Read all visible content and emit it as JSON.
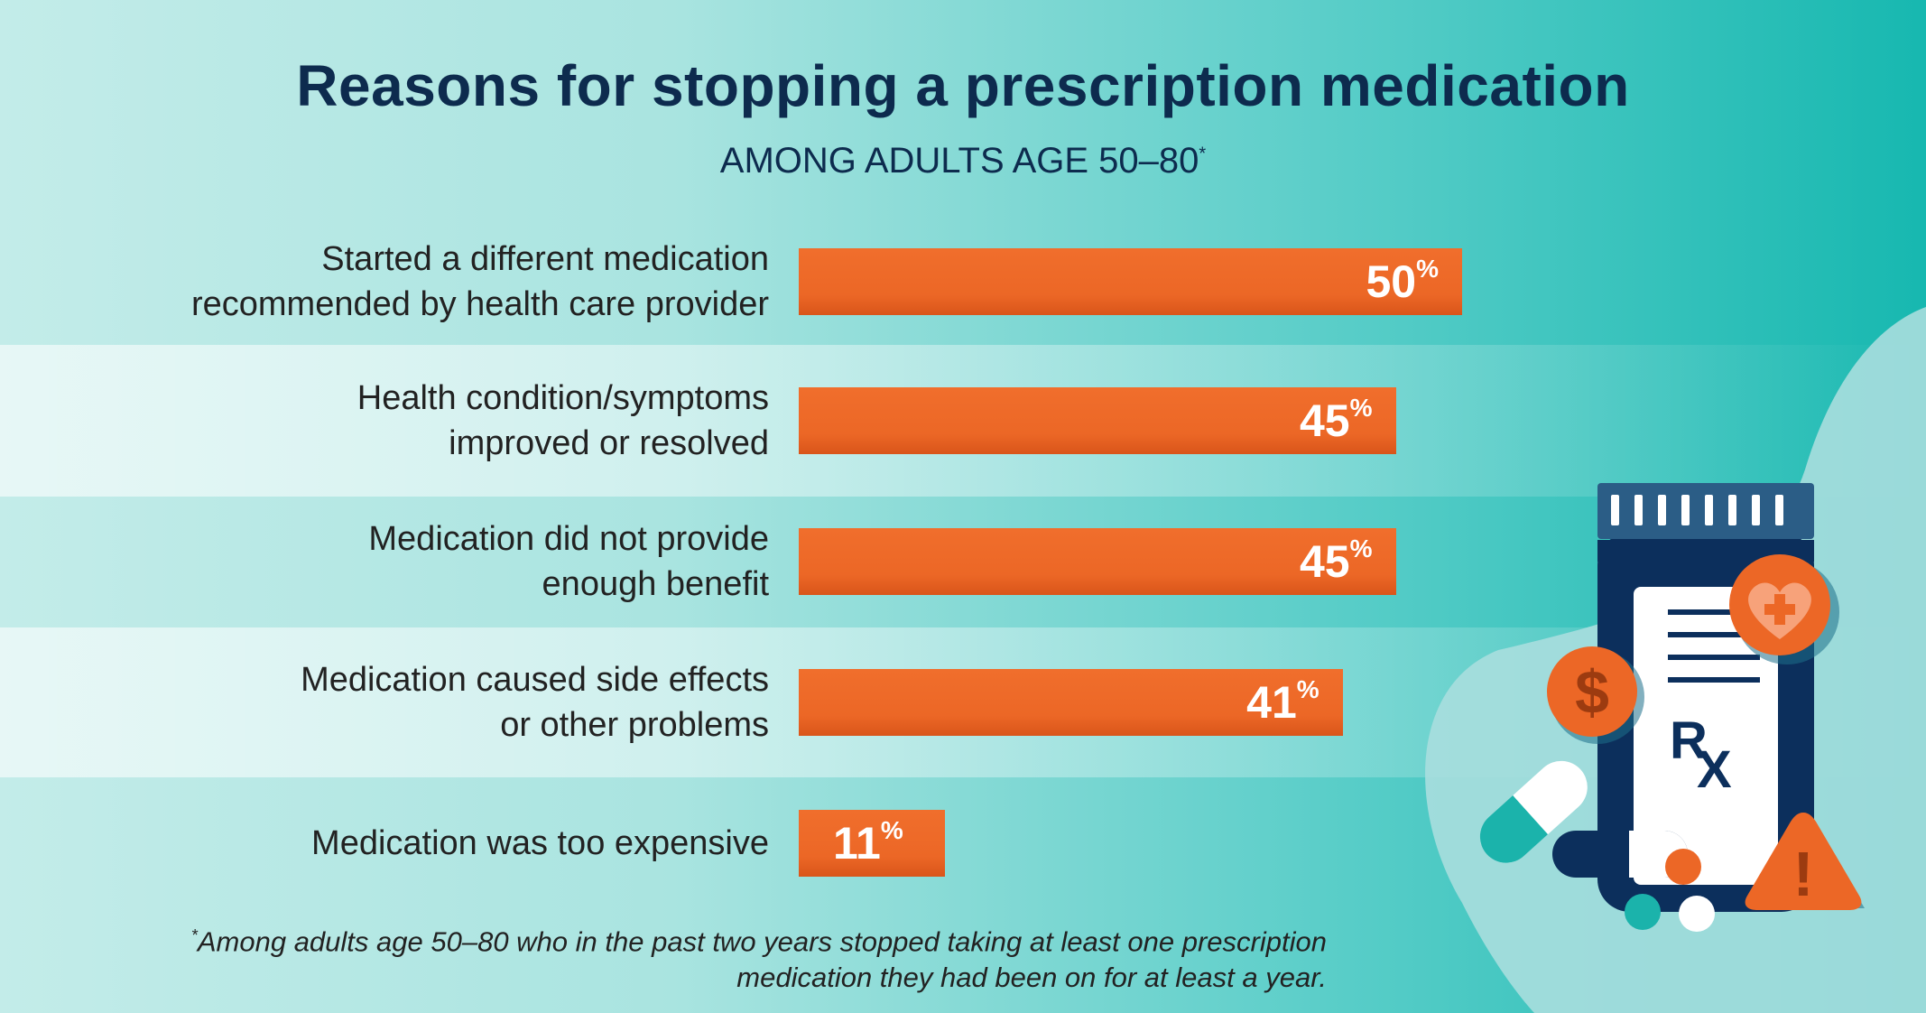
{
  "chart_data": {
    "type": "bar",
    "orientation": "horizontal",
    "title": "Reasons for stopping a prescription medication",
    "subtitle": "AMONG ADULTS AGE 50–80",
    "subtitle_marker": "*",
    "categories": [
      [
        "Started a different medication",
        "recommended by health care provider"
      ],
      [
        "Health condition/symptoms",
        "improved or resolved"
      ],
      [
        "Medication did not provide",
        "enough benefit"
      ],
      [
        "Medication caused side effects",
        "or other problems"
      ],
      [
        "Medication was too expensive"
      ]
    ],
    "values": [
      50,
      45,
      45,
      41,
      11
    ],
    "value_unit": "%",
    "xlabel": "",
    "ylabel": "",
    "grid": false,
    "legend": "none"
  },
  "footnote": {
    "marker": "*",
    "line1": "Among adults age 50–80 who in the past two years stopped taking at least one prescription",
    "line2": "medication they had been on for at least a year."
  },
  "illustration": {
    "rx_r": "R",
    "rx_x": "X",
    "dollar": "$",
    "exclamation": "!",
    "icons": [
      "pill-bottle-icon",
      "heart-plus-icon",
      "dollar-coin-icon",
      "warning-icon",
      "capsule-icon",
      "pill-icon"
    ]
  },
  "colors": {
    "bar": "#ec6726",
    "title": "#0d2b4e",
    "navy": "#133a66",
    "teal": "#17b8b0"
  }
}
